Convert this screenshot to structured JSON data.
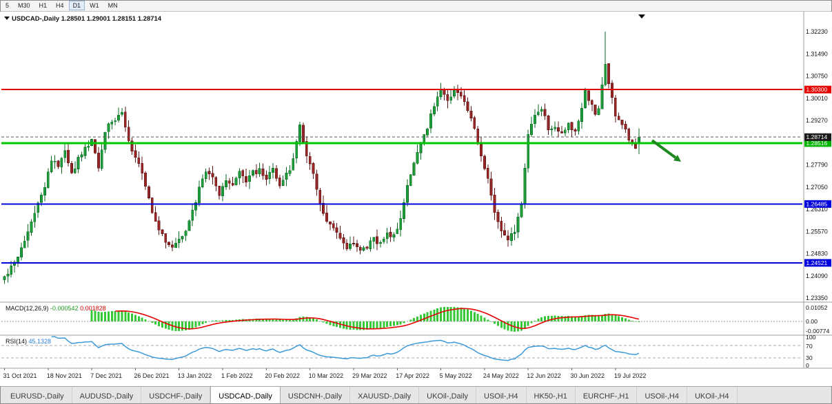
{
  "toolbar": {
    "periods": [
      {
        "label": "5",
        "active": false
      },
      {
        "label": "M30",
        "active": false
      },
      {
        "label": "H1",
        "active": false
      },
      {
        "label": "H4",
        "active": false
      },
      {
        "label": "D1",
        "active": true
      },
      {
        "label": "W1",
        "active": false
      },
      {
        "label": "MN",
        "active": false
      }
    ]
  },
  "chart": {
    "symbol_period": "USDCAD-,Daily",
    "title_line": "USDCAD-,Daily 1.28501 1.29001 1.28151 1.28714",
    "ohlc": {
      "open": "1.28501",
      "high": "1.29001",
      "low": "1.28151",
      "close": "1.28714"
    },
    "price_axis": [
      "1.32230",
      "1.31490",
      "1.30750",
      "1.30010",
      "1.29270",
      "1.28530",
      "1.27790",
      "1.27050",
      "1.26310",
      "1.25570",
      "1.24830",
      "1.24090",
      "1.23350"
    ],
    "levels": [
      {
        "name": "resistance-red",
        "price": 1.303,
        "label": "1.30300",
        "color": "#e60000",
        "width": 2,
        "style": "solid",
        "tag_bg": "#e60000"
      },
      {
        "name": "support-green",
        "price": 1.28516,
        "label": "1.28516",
        "color": "#00c400",
        "width": 3,
        "style": "solid",
        "tag_bg": "#00b400"
      },
      {
        "name": "bid-price",
        "price": 1.28714,
        "label": "1.28714",
        "color": "#555555",
        "width": 1,
        "style": "dashed",
        "tag_bg": "#1a1a1a"
      },
      {
        "name": "support-blue-upper",
        "price": 1.26485,
        "label": "1.26485",
        "color": "#0000dd",
        "width": 2,
        "style": "solid",
        "tag_bg": "#0000dd"
      },
      {
        "name": "support-blue-lower",
        "price": 1.24521,
        "label": "1.24521",
        "color": "#0000dd",
        "width": 2,
        "style": "solid",
        "tag_bg": "#0000dd"
      }
    ],
    "annotations": [
      {
        "name": "sell-arrow",
        "type": "arrow",
        "direction": "down-right",
        "color": "#1f8a1f"
      }
    ],
    "dates": [
      "31 Oct 2021",
      "18 Nov 2021",
      "7 Dec 2021",
      "26 Dec 2021",
      "13 Jan 2022",
      "1 Feb 2022",
      "20 Feb 2022",
      "10 Mar 2022",
      "29 Mar 2022",
      "17 Apr 2022",
      "5 May 2022",
      "24 May 2022",
      "12 Jun 2022",
      "30 Jun 2022",
      "19 Jul 2022"
    ],
    "chart_data": {
      "type": "candlestick",
      "symbol": "USDCAD",
      "timeframe": "Daily",
      "candle_count": 190,
      "ylim": [
        1.2335,
        1.3223
      ],
      "x_range": [
        "31 Oct 2021",
        "29 Jul 2022"
      ],
      "last_candle": {
        "open": 1.28501,
        "high": 1.29001,
        "low": 1.28151,
        "close": 1.28714
      },
      "anchors": [
        [
          0,
          1.24
        ],
        [
          3,
          1.245
        ],
        [
          6,
          1.253
        ],
        [
          9,
          1.2615
        ],
        [
          12,
          1.2705
        ],
        [
          14,
          1.28
        ],
        [
          16,
          1.2775
        ],
        [
          18,
          1.2822
        ],
        [
          20,
          1.2748
        ],
        [
          22,
          1.28
        ],
        [
          24,
          1.2842
        ],
        [
          26,
          1.2856
        ],
        [
          28,
          1.2772
        ],
        [
          30,
          1.2892
        ],
        [
          32,
          1.2922
        ],
        [
          34,
          1.2948
        ],
        [
          35,
          1.2962
        ],
        [
          36,
          1.29
        ],
        [
          38,
          1.2822
        ],
        [
          40,
          1.2792
        ],
        [
          42,
          1.2702
        ],
        [
          44,
          1.2622
        ],
        [
          46,
          1.2562
        ],
        [
          48,
          1.2522
        ],
        [
          50,
          1.2502
        ],
        [
          52,
          1.2526
        ],
        [
          54,
          1.2556
        ],
        [
          56,
          1.2622
        ],
        [
          58,
          1.2702
        ],
        [
          60,
          1.2756
        ],
        [
          62,
          1.2742
        ],
        [
          64,
          1.2676
        ],
        [
          66,
          1.2732
        ],
        [
          68,
          1.2702
        ],
        [
          70,
          1.2762
        ],
        [
          72,
          1.2722
        ],
        [
          74,
          1.2752
        ],
        [
          76,
          1.2762
        ],
        [
          78,
          1.2736
        ],
        [
          80,
          1.2772
        ],
        [
          82,
          1.2706
        ],
        [
          84,
          1.2746
        ],
        [
          86,
          1.2792
        ],
        [
          88,
          1.2906
        ],
        [
          90,
          1.2812
        ],
        [
          92,
          1.2752
        ],
        [
          94,
          1.2646
        ],
        [
          96,
          1.2596
        ],
        [
          98,
          1.2572
        ],
        [
          100,
          1.2526
        ],
        [
          102,
          1.2502
        ],
        [
          104,
          1.2516
        ],
        [
          106,
          1.2492
        ],
        [
          108,
          1.2502
        ],
        [
          110,
          1.2536
        ],
        [
          112,
          1.2512
        ],
        [
          114,
          1.2548
        ],
        [
          116,
          1.2542
        ],
        [
          118,
          1.2592
        ],
        [
          120,
          1.2702
        ],
        [
          122,
          1.2792
        ],
        [
          124,
          1.2846
        ],
        [
          126,
          1.2906
        ],
        [
          128,
          1.2976
        ],
        [
          130,
          1.3026
        ],
        [
          132,
          1.2992
        ],
        [
          134,
          1.3036
        ],
        [
          136,
          1.3008
        ],
        [
          138,
          1.2958
        ],
        [
          140,
          1.2898
        ],
        [
          142,
          1.2802
        ],
        [
          144,
          1.2726
        ],
        [
          146,
          1.2616
        ],
        [
          148,
          1.2562
        ],
        [
          150,
          1.2536
        ],
        [
          152,
          1.2556
        ],
        [
          154,
          1.2652
        ],
        [
          156,
          1.2872
        ],
        [
          158,
          1.2946
        ],
        [
          160,
          1.2968
        ],
        [
          162,
          1.2902
        ],
        [
          164,
          1.2908
        ],
        [
          166,
          1.2878
        ],
        [
          168,
          1.2912
        ],
        [
          170,
          1.2886
        ],
        [
          172,
          1.2976
        ],
        [
          173,
          1.3028
        ],
        [
          174,
          1.3002
        ],
        [
          175,
          1.2988
        ],
        [
          176,
          1.2942
        ],
        [
          177,
          1.2958
        ],
        [
          178,
          1.3042
        ],
        [
          179,
          1.3108
        ],
        [
          180,
          1.3052
        ],
        [
          181,
          1.3002
        ],
        [
          182,
          1.2948
        ],
        [
          184,
          1.2912
        ],
        [
          186,
          1.2868
        ],
        [
          188,
          1.2842
        ],
        [
          189,
          1.28714
        ]
      ],
      "special_candles": {
        "88": {
          "high": 1.2922
        },
        "179": {
          "high": 1.3223
        },
        "189": {
          "open": 1.28501,
          "high": 1.29001,
          "low": 1.28151,
          "close": 1.28714
        }
      },
      "colors": {
        "up": "#1d9e3a",
        "up_stroke": "#0b6b22",
        "down": "#992626",
        "down_stroke": "#5e1515"
      }
    }
  },
  "macd": {
    "label": "MACD(12,26,9)",
    "value_main": "-0.000542",
    "value_signal": "0.001828",
    "axis": [
      "0.01052",
      "0.00",
      "-0.00774"
    ],
    "fast": 12,
    "slow": 26,
    "signal": 9,
    "hist_color": "#37c837",
    "signal_color": "#e60000"
  },
  "rsi": {
    "label": "RSI(14)",
    "value": "45.1328",
    "axis": [
      "100",
      "70",
      "30",
      "0"
    ],
    "period": 14,
    "levels": [
      70,
      30
    ],
    "line_color": "#3a9ad9"
  },
  "tabs": [
    {
      "label": "EURUSD-,Daily",
      "active": false
    },
    {
      "label": "AUDUSD-,Daily",
      "active": false
    },
    {
      "label": "USDCHF-,Daily",
      "active": false
    },
    {
      "label": "USDCAD-,Daily",
      "active": true
    },
    {
      "label": "USDCNH-,Daily",
      "active": false
    },
    {
      "label": "XAUUSD-,Daily",
      "active": false
    },
    {
      "label": "UKOil-,Daily",
      "active": false
    },
    {
      "label": "USOil-,H4",
      "active": false
    },
    {
      "label": "HK50-,H1",
      "active": false
    },
    {
      "label": "EURCHF-,H1",
      "active": false
    },
    {
      "label": "USOil-,H4",
      "active": false
    },
    {
      "label": "UKOil-,H4",
      "active": false
    }
  ]
}
